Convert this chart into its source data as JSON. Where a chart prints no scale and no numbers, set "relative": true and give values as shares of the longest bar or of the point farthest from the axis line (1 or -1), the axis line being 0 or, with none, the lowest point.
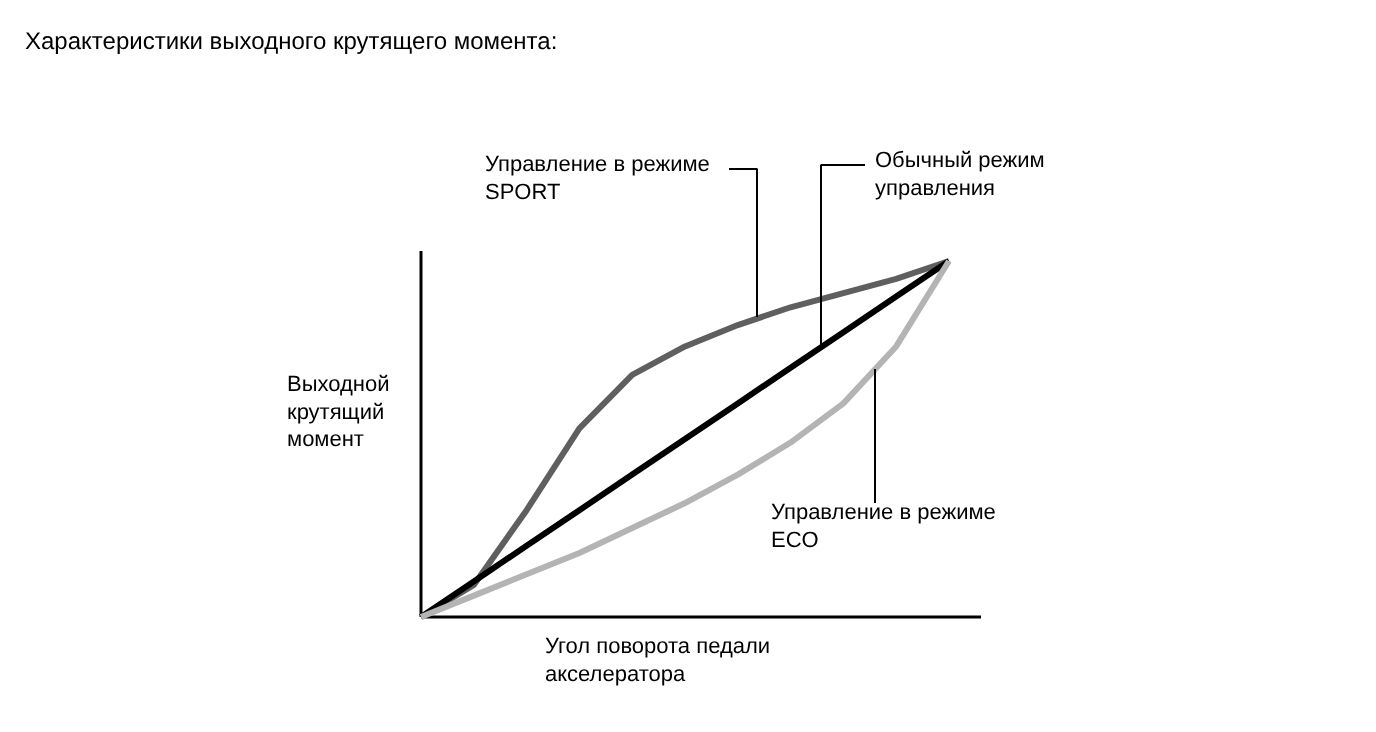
{
  "chart_data": {
    "type": "line",
    "title": "Характеристики выходного крутящего момента:",
    "xlabel": "Угол поворота педали\nакселератора",
    "ylabel": "Выходной\nкрутящий\nмомент",
    "relative": true,
    "legend": false,
    "categories": [
      null,
      null,
      null,
      null,
      null,
      null,
      null,
      null,
      null,
      null,
      null
    ],
    "series": [
      {
        "name": "Управление в режиме\nSPORT",
        "color": "#5f5f5f",
        "values": [
          0,
          0.09,
          0.3,
          0.53,
          0.68,
          0.76,
          0.82,
          0.87,
          0.91,
          0.95,
          1
        ]
      },
      {
        "name": "Обычный режим\nуправления",
        "color": "#000000",
        "values": [
          0,
          0.1,
          0.2,
          0.3,
          0.4,
          0.5,
          0.6,
          0.7,
          0.8,
          0.9,
          1
        ]
      },
      {
        "name": "Управление в режиме\nECO",
        "color": "#b4b4b4",
        "values": [
          0,
          0.06,
          0.12,
          0.18,
          0.25,
          0.32,
          0.4,
          0.49,
          0.6,
          0.76,
          1
        ]
      }
    ]
  }
}
